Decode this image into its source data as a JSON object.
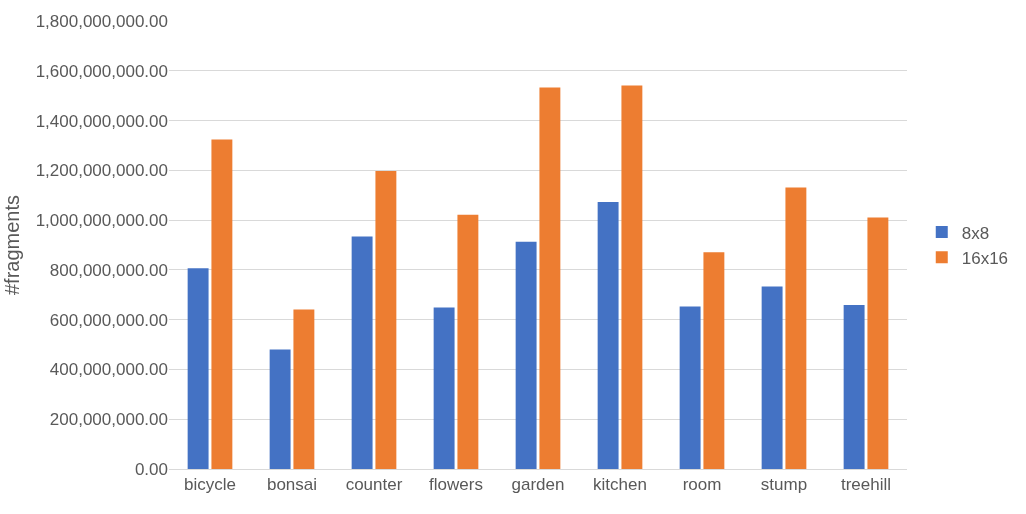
{
  "chart_data": {
    "type": "bar",
    "ylabel": "#fragments",
    "categories": [
      "bicycle",
      "bonsai",
      "counter",
      "flowers",
      "garden",
      "kitchen",
      "room",
      "stump",
      "treehill"
    ],
    "series": [
      {
        "name": "8x8",
        "color": "#4472c4",
        "values": [
          807000000,
          480000000,
          934000000,
          649000000,
          913000000,
          1073000000,
          653000000,
          733000000,
          659000000
        ]
      },
      {
        "name": "16x16",
        "color": "#ed7d31",
        "values": [
          1324000000,
          641000000,
          1197000000,
          1022000000,
          1533000000,
          1541000000,
          871000000,
          1131000000,
          1010000000
        ]
      }
    ],
    "ylim": [
      0,
      1800000000
    ],
    "yticks": [
      {
        "value": 0,
        "label": "0.00"
      },
      {
        "value": 200000000,
        "label": "200,000,000.00"
      },
      {
        "value": 400000000,
        "label": "400,000,000.00"
      },
      {
        "value": 600000000,
        "label": "600,000,000.00"
      },
      {
        "value": 800000000,
        "label": "800,000,000.00"
      },
      {
        "value": 1000000000,
        "label": "1,000,000,000.00"
      },
      {
        "value": 1200000000,
        "label": "1,200,000,000.00"
      },
      {
        "value": 1400000000,
        "label": "1,400,000,000.00"
      },
      {
        "value": 1600000000,
        "label": "1,600,000,000.00"
      },
      {
        "value": 1800000000,
        "label": "1,800,000,000.00"
      }
    ],
    "grid": "y",
    "legend": "right"
  }
}
